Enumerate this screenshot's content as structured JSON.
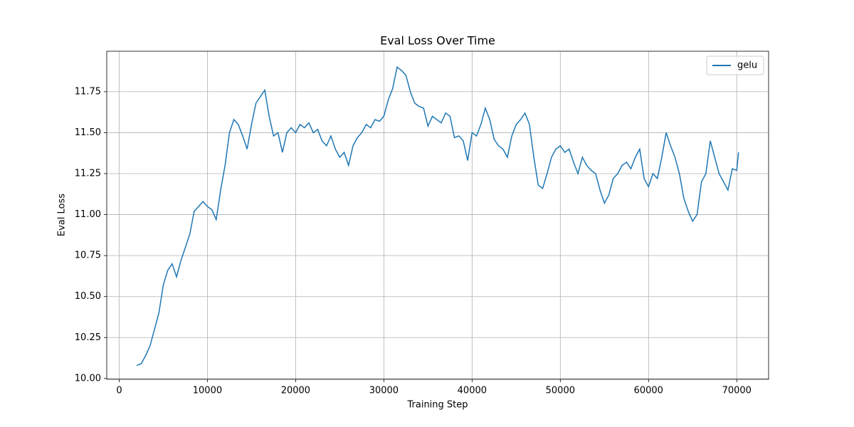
{
  "chart_data": {
    "type": "line",
    "title": "Eval Loss Over Time",
    "x_label": "Training Step",
    "y_label": "Eval Loss",
    "x": [
      2000,
      2500,
      3000,
      3500,
      4000,
      4500,
      5000,
      5500,
      6000,
      6500,
      7000,
      7500,
      8000,
      8500,
      9000,
      9500,
      10000,
      10500,
      11000,
      11500,
      12000,
      12500,
      13000,
      13500,
      14000,
      14500,
      15000,
      15500,
      16000,
      16500,
      17000,
      17500,
      18000,
      18500,
      19000,
      19500,
      20000,
      20500,
      21000,
      21500,
      22000,
      22500,
      23000,
      23500,
      24000,
      24500,
      25000,
      25500,
      26000,
      26500,
      27000,
      27500,
      28000,
      28500,
      29000,
      29500,
      30000,
      30500,
      31000,
      31500,
      32000,
      32500,
      33000,
      33500,
      34000,
      34500,
      35000,
      35500,
      36000,
      36500,
      37000,
      37500,
      38000,
      38500,
      39000,
      39500,
      40000,
      40500,
      41000,
      41500,
      42000,
      42500,
      43000,
      43500,
      44000,
      44500,
      45000,
      45500,
      46000,
      46500,
      47000,
      47500,
      48000,
      48500,
      49000,
      49500,
      50000,
      50500,
      51000,
      51500,
      52000,
      52500,
      53000,
      53500,
      54000,
      54500,
      55000,
      55500,
      56000,
      56500,
      57000,
      57500,
      58000,
      58500,
      59000,
      59500,
      60000,
      60500,
      61000,
      61500,
      62000,
      62500,
      63000,
      63500,
      64000,
      64500,
      65000,
      65500,
      66000,
      66500,
      67000,
      67500,
      68000,
      68500,
      69000,
      69500,
      70000,
      70200
    ],
    "series": [
      {
        "name": "gelu",
        "color": "#1f77b4",
        "values": [
          10.08,
          10.09,
          10.14,
          10.2,
          10.3,
          10.4,
          10.57,
          10.66,
          10.7,
          10.62,
          10.72,
          10.8,
          10.88,
          11.02,
          11.05,
          11.08,
          11.05,
          11.03,
          10.97,
          11.15,
          11.3,
          11.5,
          11.58,
          11.55,
          11.48,
          11.4,
          11.55,
          11.68,
          11.72,
          11.76,
          11.6,
          11.48,
          11.5,
          11.38,
          11.5,
          11.53,
          11.5,
          11.55,
          11.53,
          11.56,
          11.5,
          11.52,
          11.45,
          11.42,
          11.48,
          11.4,
          11.35,
          11.38,
          11.3,
          11.42,
          11.47,
          11.5,
          11.55,
          11.53,
          11.58,
          11.57,
          11.6,
          11.7,
          11.77,
          11.9,
          11.88,
          11.85,
          11.75,
          11.68,
          11.66,
          11.65,
          11.54,
          11.6,
          11.58,
          11.56,
          11.62,
          11.6,
          11.47,
          11.48,
          11.45,
          11.33,
          11.5,
          11.48,
          11.55,
          11.65,
          11.58,
          11.46,
          11.42,
          11.4,
          11.35,
          11.48,
          11.55,
          11.58,
          11.62,
          11.55,
          11.35,
          11.18,
          11.16,
          11.25,
          11.35,
          11.4,
          11.42,
          11.38,
          11.4,
          11.32,
          11.25,
          11.35,
          11.3,
          11.27,
          11.25,
          11.15,
          11.07,
          11.12,
          11.22,
          11.25,
          11.3,
          11.32,
          11.28,
          11.35,
          11.4,
          11.22,
          11.17,
          11.25,
          11.22,
          11.35,
          11.5,
          11.42,
          11.35,
          11.25,
          11.1,
          11.02,
          10.96,
          11.0,
          11.2,
          11.25,
          11.45,
          11.35,
          11.25,
          11.2,
          11.15,
          11.28,
          11.27,
          11.38
        ]
      }
    ],
    "xlim": [
      -1410,
      73610
    ],
    "ylim": [
      9.995,
      11.997
    ],
    "xticks": [
      0,
      10000,
      20000,
      30000,
      40000,
      50000,
      60000,
      70000
    ],
    "yticks": [
      {
        "value": 10,
        "label": "10.00"
      },
      10.25,
      {
        "value": 10.5,
        "label": "10.50"
      },
      10.75,
      {
        "value": 11,
        "label": "11.00"
      },
      11.25,
      {
        "value": 11.5,
        "label": "11.50"
      },
      11.75
    ],
    "grid": true,
    "legend": "upper right"
  }
}
